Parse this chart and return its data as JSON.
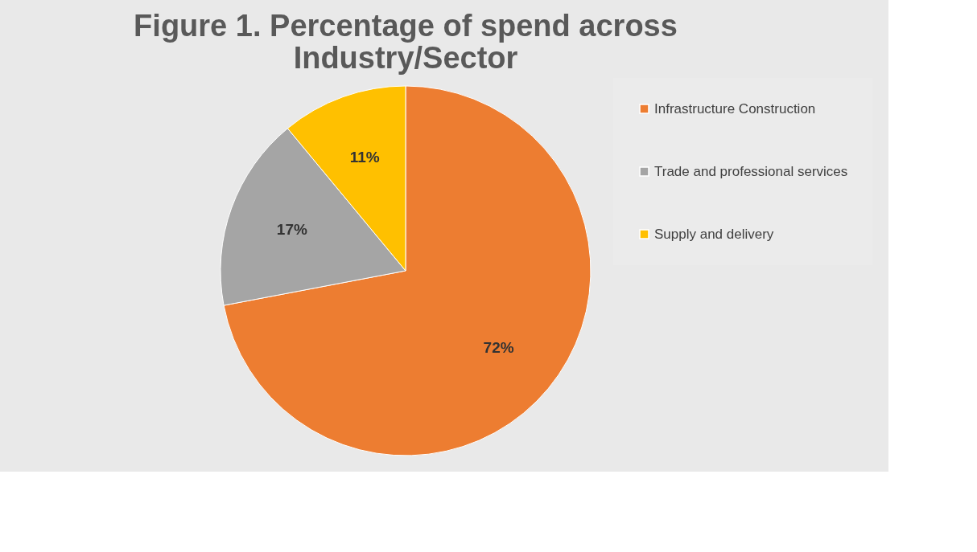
{
  "chart_data": {
    "type": "pie",
    "title": "Figure 1. Percentage of spend  across Industry/Sector",
    "categories": [
      "Infrastructure Construction",
      "Trade and professional services",
      "Supply and delivery"
    ],
    "values": [
      72,
      17,
      11
    ],
    "colors": [
      "#ed7d31",
      "#a5a5a5",
      "#ffc000"
    ],
    "value_labels": [
      "72%",
      "17%",
      "11%"
    ],
    "legend": "right"
  }
}
